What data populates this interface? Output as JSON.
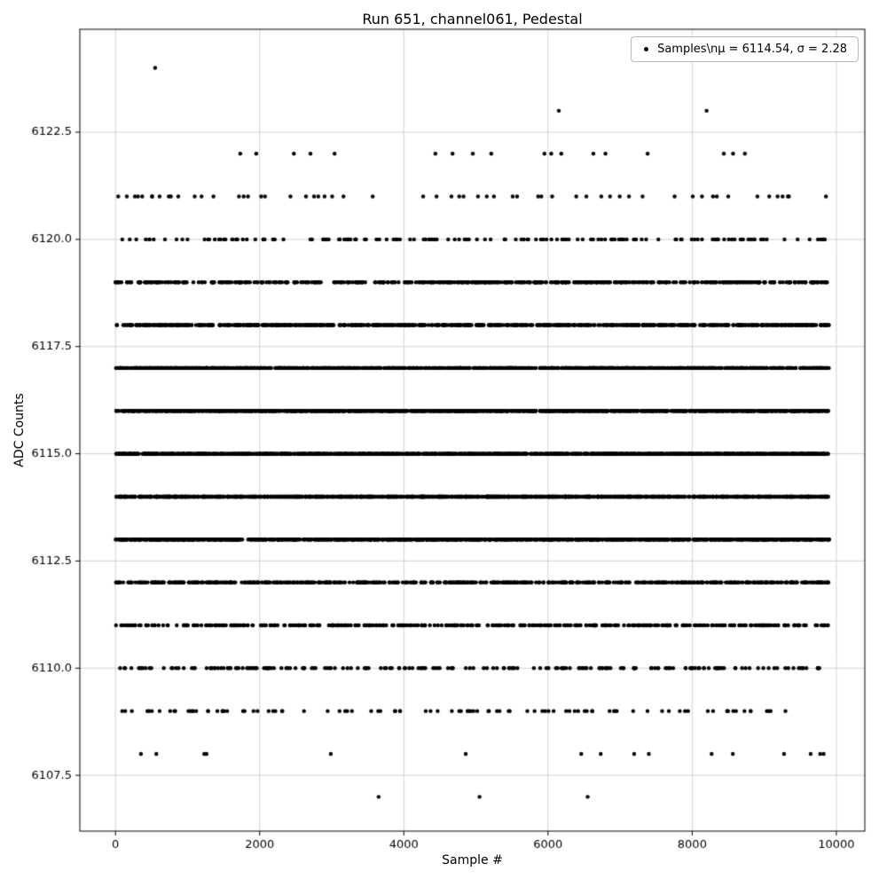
{
  "chart_data": {
    "type": "scatter",
    "title": "Run 651, channel061, Pedestal",
    "xlabel": "Sample #",
    "ylabel": "ADC Counts",
    "legend_label": "Samples\\nμ = 6114.54, σ = 2.28",
    "legend_position": "upper right",
    "stats": {
      "mu": 6114.54,
      "sigma": 2.28
    },
    "marker_color": "#000000",
    "marker_radius_px": 2.2,
    "grid": true,
    "grid_color": "#cccccc",
    "sample_max": 9899,
    "xlim": [
      -495,
      10395
    ],
    "ylim": [
      6106.2,
      6124.9
    ],
    "xticks": [
      0,
      2000,
      4000,
      6000,
      8000,
      10000
    ],
    "xtick_labels": [
      "0",
      "2000",
      "4000",
      "6000",
      "8000",
      "10000"
    ],
    "yticks": [
      6107.5,
      6110.0,
      6112.5,
      6115.0,
      6117.5,
      6120.0,
      6122.5
    ],
    "ytick_labels": [
      "6107.5",
      "6110.0",
      "6112.5",
      "6115.0",
      "6117.5",
      "6120.0",
      "6122.5"
    ],
    "seed": 42,
    "bands": [
      {
        "adc": 6124,
        "count": 1,
        "x": [
          550
        ]
      },
      {
        "adc": 6123,
        "count": 2,
        "x": [
          6150,
          8200
        ]
      },
      {
        "adc": 6122,
        "count": 18
      },
      {
        "adc": 6121,
        "count": 60
      },
      {
        "adc": 6120,
        "count": 160
      },
      {
        "adc": 6119,
        "count": 500
      },
      {
        "adc": 6118,
        "count": 750
      },
      {
        "adc": 6117,
        "count": 1150
      },
      {
        "adc": 6116,
        "count": 1350
      },
      {
        "adc": 6115,
        "count": 1500
      },
      {
        "adc": 6114,
        "count": 1600
      },
      {
        "adc": 6113,
        "count": 1250
      },
      {
        "adc": 6112,
        "count": 700
      },
      {
        "adc": 6111,
        "count": 420
      },
      {
        "adc": 6110,
        "count": 210
      },
      {
        "adc": 6109,
        "count": 100
      },
      {
        "adc": 6108,
        "count": 16
      },
      {
        "adc": 6107,
        "count": 3,
        "x": [
          3650,
          5050,
          6550
        ]
      }
    ]
  }
}
